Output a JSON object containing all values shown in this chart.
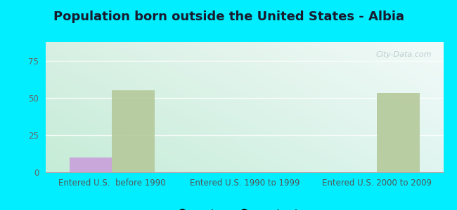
{
  "title": "Population born outside the United States - Albia",
  "categories": [
    "Entered U.S.  before 1990",
    "Entered U.S. 1990 to 1999",
    "Entered U.S. 2000 to 2009"
  ],
  "native_values": [
    10,
    0,
    0
  ],
  "foreign_values": [
    55,
    0,
    53
  ],
  "native_color": "#c9a0dc",
  "foreign_color": "#b5c99a",
  "background_color": "#00eeff",
  "ylim": [
    0,
    87.5
  ],
  "yticks": [
    0,
    25,
    50,
    75
  ],
  "bar_width": 0.32,
  "title_fontsize": 13,
  "tick_fontsize": 8.5,
  "legend_fontsize": 9.5,
  "watermark": "City-Data.com",
  "grad_top_left": "#d0ede0",
  "grad_top_right": "#eaf5f5",
  "grad_bottom_left": "#c8ecd8",
  "grad_bottom_right": "#e0f5f0"
}
